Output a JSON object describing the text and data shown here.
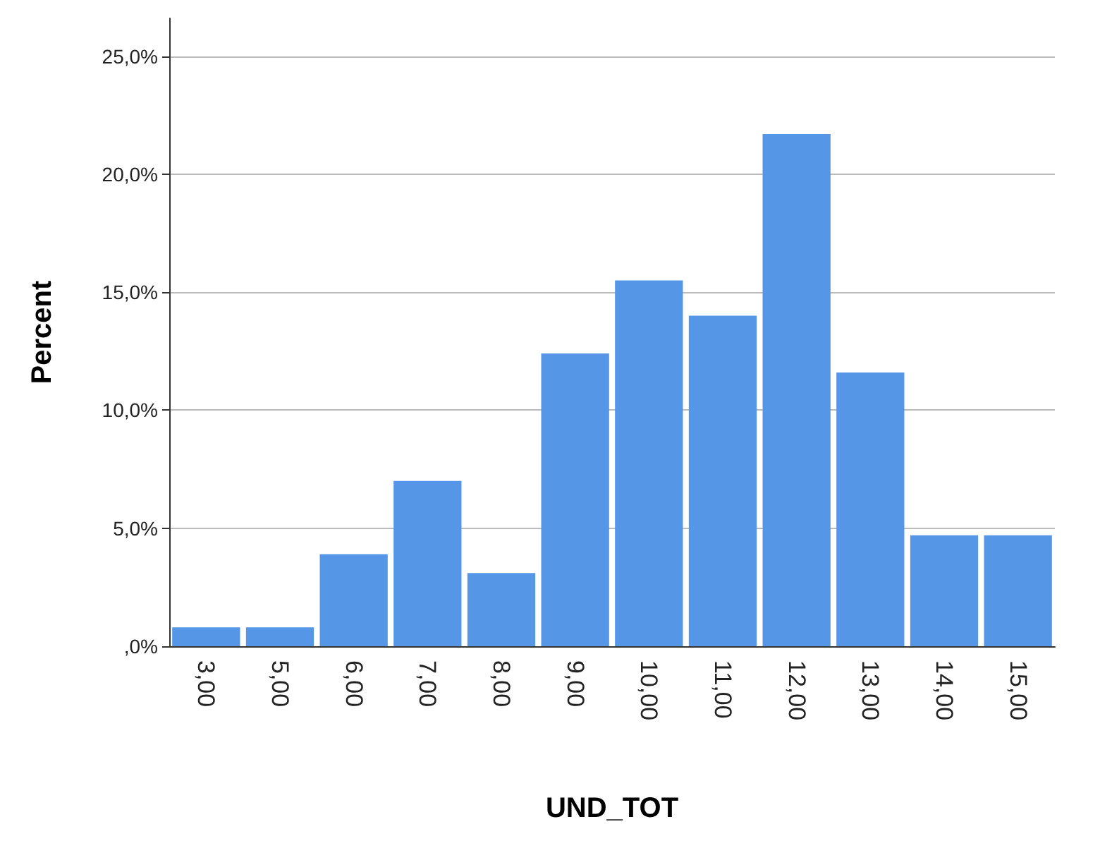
{
  "chart_data": {
    "type": "bar",
    "xlabel": "UND_TOT",
    "ylabel": "Percent",
    "categories": [
      "3,00",
      "5,00",
      "6,00",
      "7,00",
      "8,00",
      "9,00",
      "10,00",
      "11,00",
      "12,00",
      "13,00",
      "14,00",
      "15,00"
    ],
    "values": [
      0.8,
      0.8,
      3.9,
      7.0,
      3.1,
      12.4,
      15.5,
      14.0,
      21.7,
      11.6,
      4.7,
      4.7
    ],
    "color": "#5596e6",
    "ylim": [
      0,
      26.6
    ],
    "yticks": [
      {
        "value": 0,
        "label": ",0%"
      },
      {
        "value": 5,
        "label": "5,0%"
      },
      {
        "value": 10,
        "label": "10,0%"
      },
      {
        "value": 15,
        "label": "15,0%"
      },
      {
        "value": 20,
        "label": "20,0%"
      },
      {
        "value": 25,
        "label": "25,0%"
      }
    ],
    "grid": "y"
  }
}
